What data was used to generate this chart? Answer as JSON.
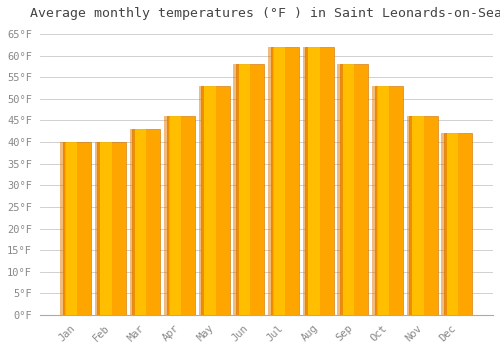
{
  "title": "Average monthly temperatures (°F ) in Saint Leonards-on-Sea",
  "months": [
    "Jan",
    "Feb",
    "Mar",
    "Apr",
    "May",
    "Jun",
    "Jul",
    "Aug",
    "Sep",
    "Oct",
    "Nov",
    "Dec"
  ],
  "values": [
    40,
    40,
    43,
    46,
    53,
    58,
    62,
    62,
    58,
    53,
    46,
    42
  ],
  "bar_color_main": "#FFA500",
  "bar_color_light": "#FFD000",
  "bar_color_dark": "#E07800",
  "ylim": [
    0,
    67
  ],
  "yticks": [
    0,
    5,
    10,
    15,
    20,
    25,
    30,
    35,
    40,
    45,
    50,
    55,
    60,
    65
  ],
  "ytick_labels": [
    "0°F",
    "5°F",
    "10°F",
    "15°F",
    "20°F",
    "25°F",
    "30°F",
    "35°F",
    "40°F",
    "45°F",
    "50°F",
    "55°F",
    "60°F",
    "65°F"
  ],
  "bg_color": "#ffffff",
  "grid_color": "#d0d0d0",
  "title_fontsize": 9.5,
  "tick_fontsize": 7.5,
  "font_family": "monospace",
  "bar_width": 0.82
}
